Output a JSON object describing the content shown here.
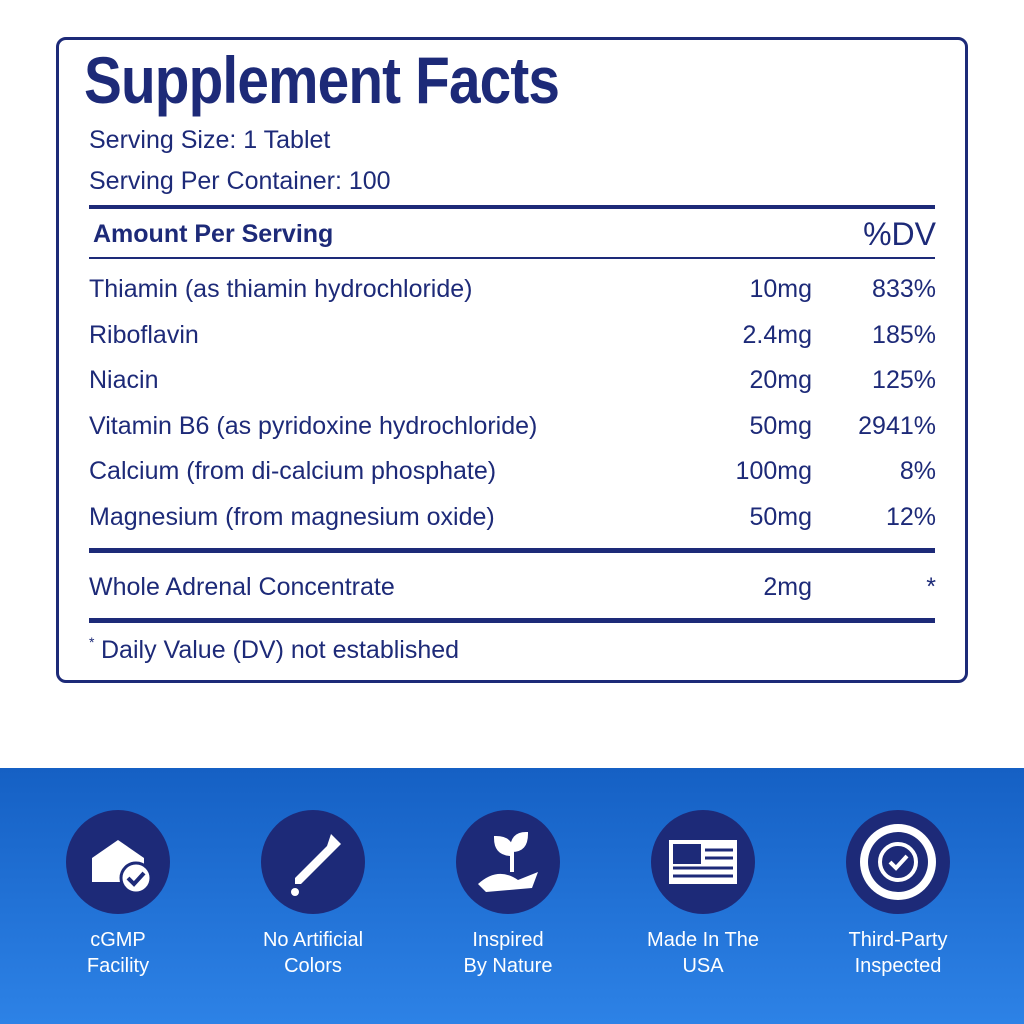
{
  "header": {
    "title": "Supplement Facts",
    "serving_size": "Serving Size: 1 Tablet",
    "servings_per_container": "Serving Per Container: 100"
  },
  "table": {
    "columns": [
      "Amount Per Serving",
      "%DV"
    ],
    "rows": [
      [
        "Thiamin (as thiamin hydrochloride)",
        "10mg",
        "833%"
      ],
      [
        "Riboflavin",
        "2.4mg",
        "185%"
      ],
      [
        "Niacin",
        "20mg",
        "125%"
      ],
      [
        "Vitamin B6 (as pyridoxine hydrochloride)",
        "50mg",
        "2941%"
      ],
      [
        "Calcium (from di-calcium phosphate)",
        "100mg",
        "8%"
      ],
      [
        "Magnesium (from magnesium oxide)",
        "50mg",
        "12%"
      ]
    ],
    "other_rows": [
      [
        "Whole Adrenal Concentrate",
        "2mg",
        "*"
      ]
    ],
    "footnote": {
      "marker": "*",
      "text": "Daily Value (DV) not established"
    }
  },
  "badges": [
    [
      "cGMP",
      "Facility"
    ],
    [
      "No Artificial",
      "Colors"
    ],
    [
      "Inspired",
      "By Nature"
    ],
    [
      "Made In The",
      "USA"
    ],
    [
      "Third-Party",
      "Inspected"
    ]
  ]
}
